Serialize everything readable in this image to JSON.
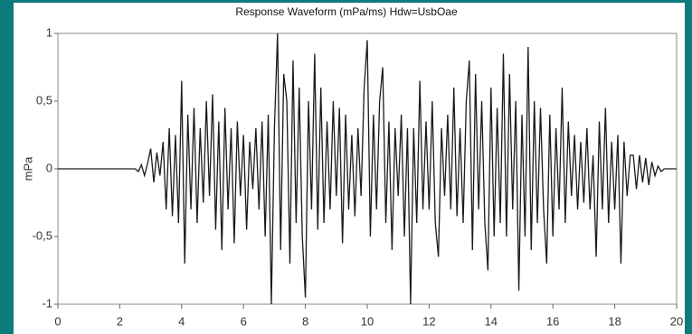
{
  "chart_data": {
    "type": "line",
    "title": "Response Waveform (mPa/ms) Hdw=UsbOae",
    "y_label": "mPa",
    "x": [
      0,
      2.5,
      2.6,
      2.7,
      2.8,
      2.9,
      3.0,
      3.1,
      3.2,
      3.3,
      3.4,
      3.5,
      3.6,
      3.7,
      3.8,
      3.9,
      4.0,
      4.1,
      4.2,
      4.3,
      4.4,
      4.5,
      4.6,
      4.7,
      4.8,
      4.9,
      5.0,
      5.1,
      5.2,
      5.3,
      5.4,
      5.5,
      5.6,
      5.7,
      5.8,
      5.9,
      6.0,
      6.1,
      6.2,
      6.3,
      6.4,
      6.5,
      6.6,
      6.7,
      6.8,
      6.9,
      7.0,
      7.1,
      7.2,
      7.3,
      7.4,
      7.5,
      7.6,
      7.7,
      7.8,
      7.9,
      8.0,
      8.1,
      8.2,
      8.3,
      8.4,
      8.5,
      8.6,
      8.7,
      8.8,
      8.9,
      9.0,
      9.1,
      9.2,
      9.3,
      9.4,
      9.5,
      9.6,
      9.7,
      9.8,
      9.9,
      10.0,
      10.1,
      10.2,
      10.3,
      10.4,
      10.5,
      10.6,
      10.7,
      10.8,
      10.9,
      11.0,
      11.1,
      11.2,
      11.3,
      11.4,
      11.5,
      11.6,
      11.7,
      11.8,
      11.9,
      12.0,
      12.1,
      12.2,
      12.3,
      12.4,
      12.5,
      12.6,
      12.7,
      12.8,
      12.9,
      13.0,
      13.1,
      13.2,
      13.3,
      13.4,
      13.5,
      13.6,
      13.7,
      13.8,
      13.9,
      14.0,
      14.1,
      14.2,
      14.3,
      14.4,
      14.5,
      14.6,
      14.7,
      14.8,
      14.9,
      15.0,
      15.1,
      15.2,
      15.3,
      15.4,
      15.5,
      15.6,
      15.7,
      15.8,
      15.9,
      16.0,
      16.1,
      16.2,
      16.3,
      16.4,
      16.5,
      16.6,
      16.7,
      16.8,
      16.9,
      17.0,
      17.1,
      17.2,
      17.3,
      17.4,
      17.5,
      17.6,
      17.7,
      17.8,
      17.9,
      18.0,
      18.1,
      18.2,
      18.3,
      18.4,
      18.5,
      18.6,
      18.7,
      18.8,
      18.9,
      19.0,
      19.1,
      19.2,
      19.3,
      19.4,
      19.5,
      19.6,
      20
    ],
    "series": [
      {
        "color": "#1a1a1a",
        "values": [
          0,
          0,
          -0.02,
          0.03,
          -0.05,
          0.04,
          0.15,
          -0.1,
          0.12,
          -0.05,
          0.2,
          -0.3,
          0.3,
          -0.35,
          0.25,
          -0.4,
          0.65,
          -0.7,
          0.4,
          -0.3,
          0.45,
          -0.4,
          0.3,
          -0.25,
          0.5,
          -0.2,
          0.55,
          -0.45,
          0.35,
          -0.6,
          0.45,
          -0.3,
          0.3,
          -0.55,
          0.35,
          -0.2,
          0.25,
          -0.45,
          0.2,
          -0.15,
          0.3,
          -0.3,
          0.35,
          -0.5,
          0.4,
          -1,
          0.3,
          1,
          -0.6,
          0.7,
          0.5,
          -0.7,
          0.8,
          -0.4,
          0.6,
          -0.5,
          -0.95,
          0.5,
          -0.3,
          0.85,
          -0.45,
          0.6,
          -0.4,
          0.35,
          -0.3,
          0.5,
          -0.2,
          0.45,
          -0.55,
          0.4,
          -0.3,
          0.25,
          -0.35,
          0.3,
          -0.2,
          0.6,
          0.95,
          -0.5,
          0.4,
          -0.3,
          0.5,
          0.75,
          -0.4,
          0.35,
          -0.6,
          0.3,
          -0.2,
          0.4,
          -0.5,
          0.3,
          -1,
          0.3,
          -0.4,
          0.65,
          -0.3,
          0.35,
          -0.3,
          0.5,
          -0.4,
          -0.65,
          0.3,
          -0.2,
          0.4,
          -0.3,
          0.6,
          -0.35,
          0.3,
          -0.4,
          0.5,
          0.8,
          -0.6,
          0.7,
          -0.3,
          0.5,
          -0.4,
          -0.75,
          0.6,
          -0.5,
          0.45,
          -0.4,
          0.85,
          -0.5,
          0.7,
          -0.3,
          0.5,
          -0.9,
          0.4,
          -0.5,
          0.9,
          -0.6,
          0.5,
          -0.4,
          0.45,
          -0.3,
          -0.7,
          0.4,
          -0.5,
          0.3,
          -0.3,
          0.6,
          -0.4,
          0.35,
          -0.2,
          0.25,
          -0.3,
          0.2,
          -0.25,
          0.3,
          -0.3,
          0.1,
          -0.65,
          0.35,
          -0.3,
          0.45,
          -0.4,
          0.2,
          -0.3,
          0.25,
          -0.7,
          0.2,
          -0.2,
          0.1,
          0.1,
          -0.15,
          0.1,
          -0.1,
          0.08,
          -0.12,
          0.05,
          -0.05,
          0.02,
          -0.02,
          0,
          0
        ]
      }
    ],
    "xlim": [
      0,
      20
    ],
    "xticks": [
      0,
      2,
      4,
      6,
      8,
      10,
      12,
      14,
      16,
      18,
      20
    ],
    "ylim": [
      -1,
      1
    ],
    "yticks": [
      -1,
      {
        "value": -0.5,
        "label": "-0,5"
      },
      0,
      {
        "value": 0.5,
        "label": "0,5"
      },
      1
    ]
  }
}
